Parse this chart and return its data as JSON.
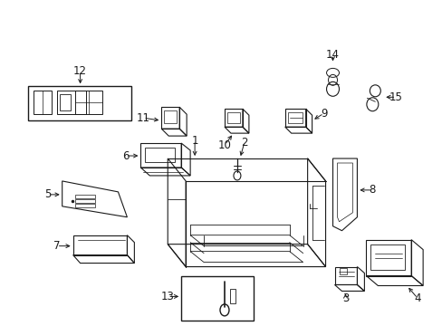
{
  "background_color": "#ffffff",
  "line_color": "#1a1a1a",
  "fig_width": 4.89,
  "fig_height": 3.6,
  "dpi": 100,
  "label_fontsize": 8.5
}
